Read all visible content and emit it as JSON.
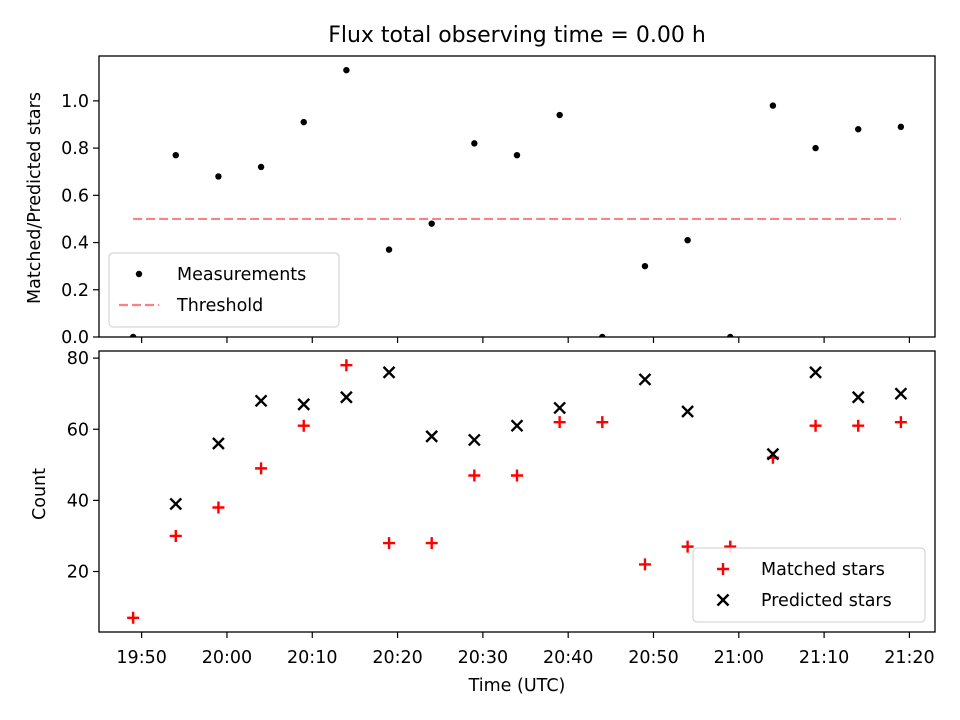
{
  "title": "Flux total observing time = 0.00 h",
  "chart_data": [
    {
      "type": "scatter",
      "ylabel": "Matched/Predicted stars",
      "ylim": [
        0,
        1.19
      ],
      "yticks": [
        0.0,
        0.2,
        0.4,
        0.6,
        0.8,
        1.0
      ],
      "ytick_labels": [
        "0.0",
        "0.2",
        "0.4",
        "0.6",
        "0.8",
        "1.0"
      ],
      "legend_position": "lower-left",
      "threshold": {
        "name": "Threshold",
        "value": 0.5,
        "color": "#ff8080",
        "style": "dashed"
      },
      "series": [
        {
          "name": "Measurements",
          "marker": "dot",
          "color": "#000000",
          "x": [
            "19:49",
            "19:54",
            "19:59",
            "20:04",
            "20:09",
            "20:14",
            "20:19",
            "20:24",
            "20:29",
            "20:34",
            "20:39",
            "20:44",
            "20:49",
            "20:54",
            "20:59",
            "21:04",
            "21:09",
            "21:14",
            "21:19"
          ],
          "y": [
            0.0,
            0.77,
            0.68,
            0.72,
            0.91,
            1.13,
            0.37,
            0.48,
            0.82,
            0.77,
            0.94,
            0.0,
            0.3,
            0.41,
            0.0,
            0.98,
            0.8,
            0.88,
            0.89
          ]
        }
      ]
    },
    {
      "type": "scatter",
      "xlabel": "Time (UTC)",
      "ylabel": "Count",
      "xlim": [
        "19:45",
        "21:23"
      ],
      "xticks": [
        "19:50",
        "20:00",
        "20:10",
        "20:20",
        "20:30",
        "20:40",
        "20:50",
        "21:00",
        "21:10",
        "21:20"
      ],
      "ylim": [
        3,
        82
      ],
      "yticks": [
        20,
        40,
        60,
        80
      ],
      "ytick_labels": [
        "20",
        "40",
        "60",
        "80"
      ],
      "legend_position": "lower-right",
      "series": [
        {
          "name": "Matched stars",
          "marker": "plus",
          "color": "#ff0000",
          "x": [
            "19:49",
            "19:54",
            "19:59",
            "20:04",
            "20:09",
            "20:14",
            "20:19",
            "20:24",
            "20:29",
            "20:34",
            "20:39",
            "20:44",
            "20:49",
            "20:54",
            "20:59",
            "21:04",
            "21:09",
            "21:14",
            "21:19"
          ],
          "y": [
            7,
            30,
            38,
            49,
            61,
            78,
            28,
            28,
            47,
            47,
            62,
            62,
            22,
            27,
            27,
            52,
            61,
            61,
            62
          ]
        },
        {
          "name": "Predicted stars",
          "marker": "x",
          "color": "#000000",
          "x": [
            "19:54",
            "19:59",
            "20:04",
            "20:09",
            "20:14",
            "20:19",
            "20:24",
            "20:29",
            "20:34",
            "20:39",
            "20:49",
            "20:54",
            "21:04",
            "21:09",
            "21:14",
            "21:19"
          ],
          "y": [
            39,
            56,
            68,
            67,
            69,
            76,
            58,
            57,
            61,
            66,
            74,
            65,
            53,
            76,
            69,
            70
          ]
        }
      ]
    }
  ]
}
